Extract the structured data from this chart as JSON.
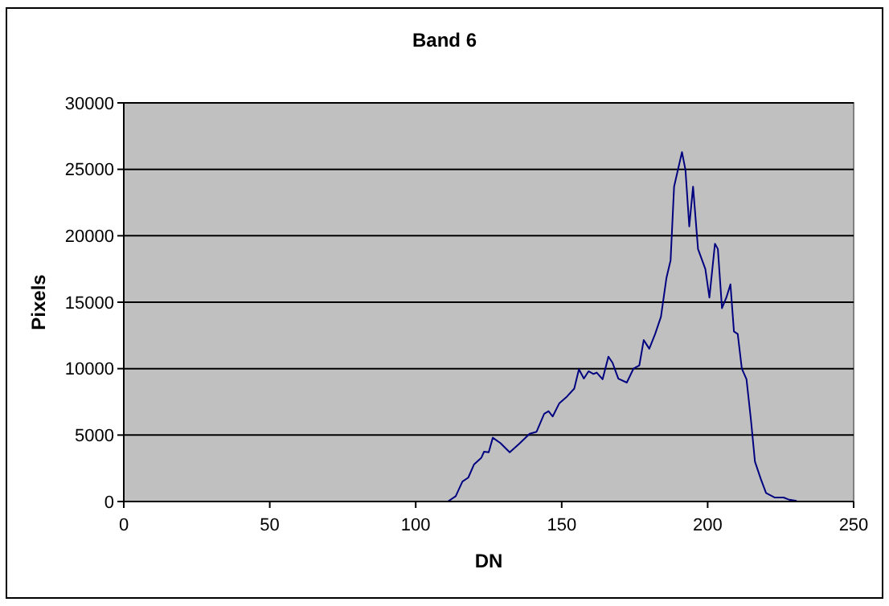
{
  "chart_data": {
    "type": "line",
    "title": "Band 6",
    "xlabel": "DN",
    "ylabel": "Pixels",
    "xlim": [
      0,
      250
    ],
    "xticks": [
      0,
      50,
      100,
      150,
      200,
      250
    ],
    "ylim": [
      0,
      30000
    ],
    "yticks": [
      0,
      5000,
      10000,
      15000,
      20000,
      25000,
      30000
    ],
    "grid": "y",
    "series": [
      {
        "color": "#000080",
        "x": [
          111,
          113.7,
          116,
          118,
          120,
          122.5,
          123.4,
          125,
          126.4,
          129,
          132.2,
          135.5,
          139,
          141.4,
          144,
          145.5,
          146.9,
          149.2,
          151.8,
          154.3,
          155.9,
          157.6,
          159.2,
          160.9,
          162,
          164,
          166,
          167.4,
          169.4,
          172.3,
          174.6,
          176.6,
          178.1,
          180,
          182,
          184,
          185.9,
          187.3,
          188.5,
          189.8,
          191.2,
          192.4,
          193.7,
          195,
          196.7,
          199.2,
          200.6,
          202.5,
          203.5,
          204.9,
          206.4,
          207.8,
          209,
          210.3,
          211.7,
          213.3,
          214.8,
          216.2,
          218.2,
          220,
          223,
          226,
          228,
          230.5
        ],
        "values": [
          0,
          400,
          1500,
          1800,
          2800,
          3300,
          3750,
          3700,
          4800,
          4400,
          3700,
          4350,
          5100,
          5250,
          6600,
          6800,
          6400,
          7400,
          7900,
          8500,
          9950,
          9250,
          9800,
          9600,
          9700,
          9200,
          10900,
          10450,
          9250,
          8950,
          10000,
          10250,
          12150,
          11500,
          12600,
          13900,
          16850,
          18150,
          23700,
          24950,
          26300,
          24950,
          20700,
          23700,
          19000,
          17500,
          15350,
          19400,
          19000,
          14550,
          15350,
          16350,
          12800,
          12600,
          10000,
          9200,
          6200,
          3000,
          1700,
          640,
          300,
          300,
          130,
          40
        ]
      }
    ]
  }
}
